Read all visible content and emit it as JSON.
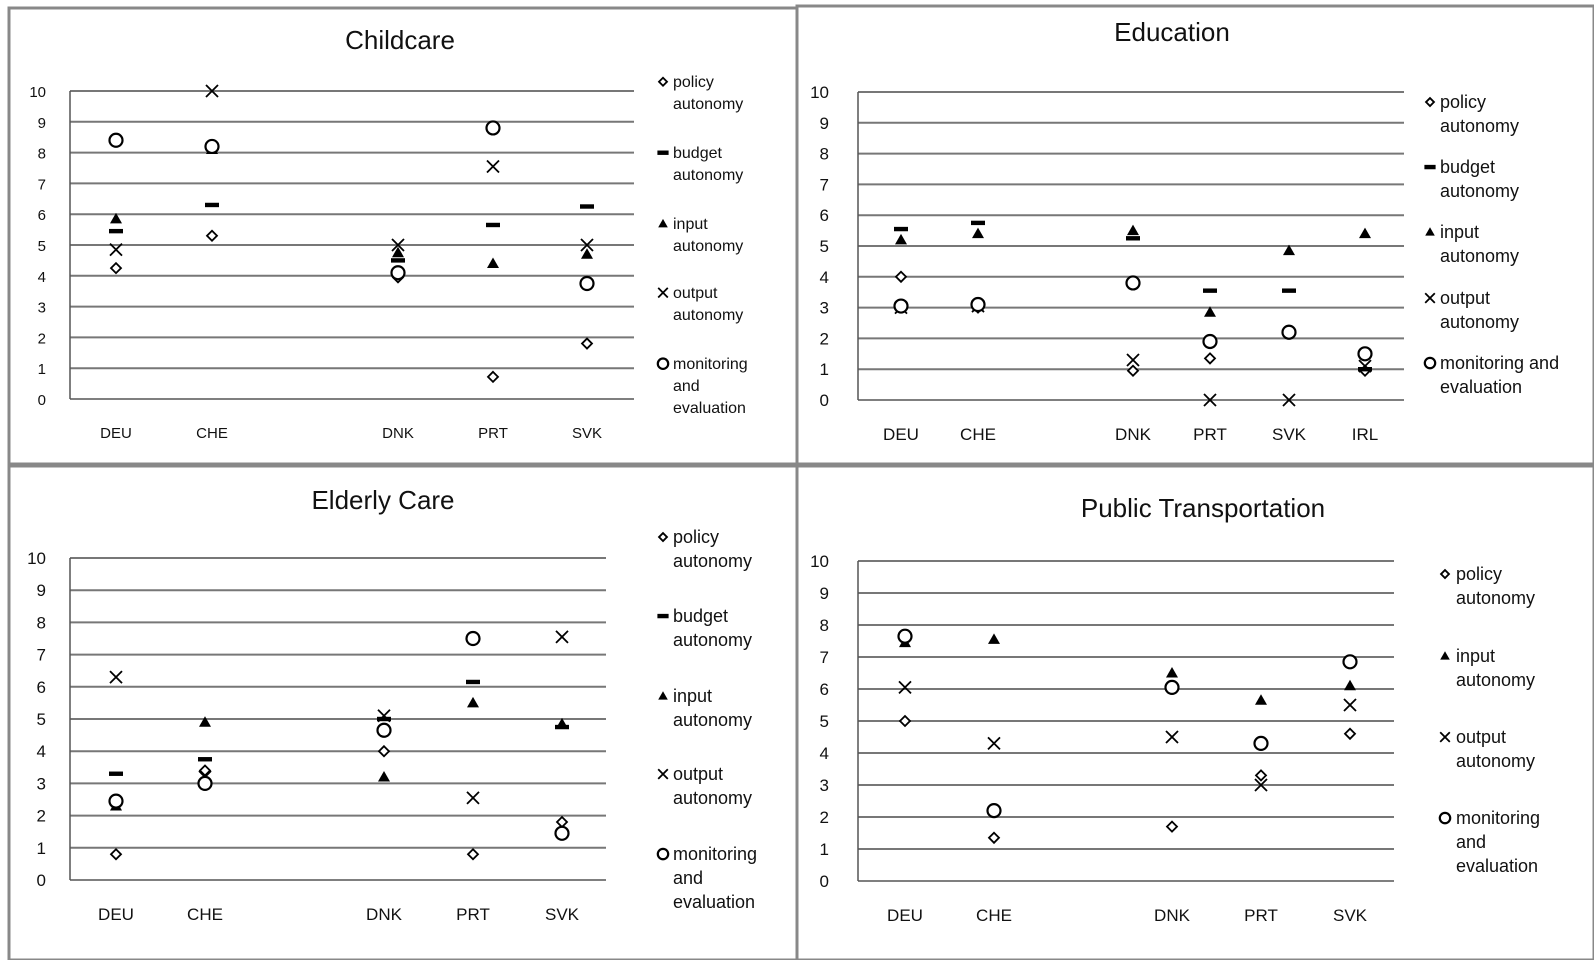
{
  "chart_data": [
    {
      "type": "scatter",
      "title": "Childcare",
      "categories": [
        "DEU",
        "CHE",
        "",
        "DNK",
        "PRT",
        "SVK"
      ],
      "ylim": [
        0,
        10
      ],
      "yticks": [
        "0",
        "1",
        "2",
        "3",
        "4",
        "5",
        "6",
        "7",
        "8",
        "9",
        "10"
      ],
      "grid": true,
      "legend_position": "right",
      "legend": [
        "policy autonomy",
        "budget autonomy",
        "input autonomy",
        "output autonomy",
        "monitoring and evaluation"
      ],
      "series": [
        {
          "name": "policy autonomy",
          "marker": "diamond",
          "values": [
            4.25,
            5.3,
            null,
            3.95,
            0.72,
            1.8
          ]
        },
        {
          "name": "budget autonomy",
          "marker": "dash",
          "values": [
            5.45,
            6.3,
            null,
            4.5,
            5.65,
            6.25
          ]
        },
        {
          "name": "input autonomy",
          "marker": "triangle",
          "values": [
            5.85,
            8.1,
            null,
            4.75,
            4.4,
            4.7
          ]
        },
        {
          "name": "output autonomy",
          "marker": "x",
          "values": [
            4.85,
            10.0,
            null,
            5.0,
            7.55,
            5.0
          ]
        },
        {
          "name": "monitoring and evaluation",
          "marker": "circle",
          "values": [
            8.4,
            8.2,
            null,
            4.1,
            8.8,
            3.75
          ]
        }
      ]
    },
    {
      "type": "scatter",
      "title": "Education",
      "categories": [
        "DEU",
        "CHE",
        "",
        "DNK",
        "PRT",
        "SVK",
        "IRL"
      ],
      "ylim": [
        0,
        10
      ],
      "yticks": [
        "0",
        "1",
        "2",
        "3",
        "4",
        "5",
        "6",
        "7",
        "8",
        "9",
        "10"
      ],
      "grid": true,
      "legend_position": "right",
      "legend": [
        "policy autonomy",
        "budget autonomy",
        "input autonomy",
        "output autonomy",
        "monitoring and evaluation"
      ],
      "series": [
        {
          "name": "policy autonomy",
          "marker": "diamond",
          "values": [
            4.0,
            3.0,
            null,
            0.95,
            1.35,
            2.25,
            0.95
          ]
        },
        {
          "name": "budget autonomy",
          "marker": "dash",
          "values": [
            5.55,
            5.75,
            null,
            5.25,
            3.55,
            3.55,
            1.0
          ]
        },
        {
          "name": "input autonomy",
          "marker": "triangle",
          "values": [
            5.2,
            5.4,
            null,
            5.5,
            2.85,
            4.85,
            5.4
          ]
        },
        {
          "name": "output autonomy",
          "marker": "x",
          "values": [
            3.0,
            3.05,
            null,
            1.3,
            0.0,
            0.0,
            1.1
          ]
        },
        {
          "name": "monitoring and evaluation",
          "marker": "circle",
          "values": [
            3.05,
            3.1,
            null,
            3.8,
            1.9,
            2.2,
            1.5
          ]
        }
      ]
    },
    {
      "type": "scatter",
      "title": "Elderly Care",
      "categories": [
        "DEU",
        "CHE",
        "",
        "DNK",
        "PRT",
        "SVK"
      ],
      "ylim": [
        0,
        10
      ],
      "yticks": [
        "0",
        "1",
        "2",
        "3",
        "4",
        "5",
        "6",
        "7",
        "8",
        "9",
        "10"
      ],
      "grid": true,
      "legend_position": "right",
      "legend": [
        "policy autonomy",
        "budget autonomy",
        "input autonomy",
        "output autonomy",
        "monitoring and evaluation"
      ],
      "series": [
        {
          "name": "policy autonomy",
          "marker": "diamond",
          "values": [
            0.8,
            3.4,
            null,
            4.0,
            0.8,
            1.8
          ]
        },
        {
          "name": "budget autonomy",
          "marker": "dash",
          "values": [
            3.3,
            3.75,
            null,
            5.0,
            6.15,
            4.75
          ]
        },
        {
          "name": "input autonomy",
          "marker": "triangle",
          "values": [
            2.3,
            4.9,
            null,
            3.2,
            5.5,
            4.85
          ]
        },
        {
          "name": "output autonomy",
          "marker": "x",
          "values": [
            6.3,
            3.2,
            null,
            5.1,
            2.55,
            7.55
          ]
        },
        {
          "name": "monitoring and evaluation",
          "marker": "circle",
          "values": [
            2.45,
            3.0,
            null,
            4.65,
            7.5,
            1.45
          ]
        }
      ]
    },
    {
      "type": "scatter",
      "title": "Public Transportation",
      "categories": [
        "DEU",
        "CHE",
        "",
        "DNK",
        "PRT",
        "SVK"
      ],
      "ylim": [
        0,
        10
      ],
      "yticks": [
        "0",
        "1",
        "2",
        "3",
        "4",
        "5",
        "6",
        "7",
        "8",
        "9",
        "10"
      ],
      "grid": true,
      "legend_position": "right",
      "legend": [
        "policy autonomy",
        "input autonomy",
        "output autonomy",
        "monitoring and evaluation"
      ],
      "series": [
        {
          "name": "policy autonomy",
          "marker": "diamond",
          "values": [
            5.0,
            1.35,
            null,
            1.7,
            3.3,
            4.6
          ]
        },
        {
          "name": "input autonomy",
          "marker": "triangle",
          "values": [
            7.45,
            7.55,
            null,
            6.5,
            5.65,
            6.1
          ]
        },
        {
          "name": "output autonomy",
          "marker": "x",
          "values": [
            6.05,
            4.3,
            null,
            4.5,
            3.0,
            5.5
          ]
        },
        {
          "name": "monitoring and evaluation",
          "marker": "circle",
          "values": [
            7.65,
            2.2,
            null,
            6.05,
            4.3,
            6.85
          ]
        }
      ]
    }
  ]
}
